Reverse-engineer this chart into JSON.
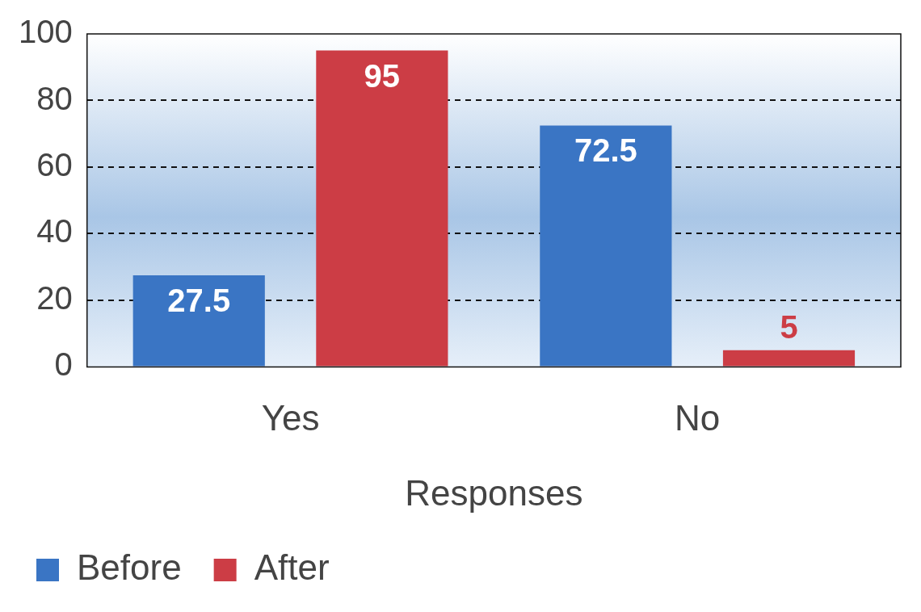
{
  "chart_data": {
    "type": "bar",
    "xlabel": "Responses",
    "categories": [
      "Yes",
      "No"
    ],
    "series": [
      {
        "name": "Before",
        "color": "#3a75c4",
        "values": [
          27.5,
          72.5
        ]
      },
      {
        "name": "After",
        "color": "#cc3d45",
        "values": [
          95,
          5
        ]
      }
    ],
    "ylim": [
      0,
      100
    ],
    "yticks": [
      0,
      20,
      40,
      60,
      80,
      100
    ],
    "grid": "y",
    "line_style": "dashed",
    "legend": "bottom left",
    "data_labels": true
  }
}
